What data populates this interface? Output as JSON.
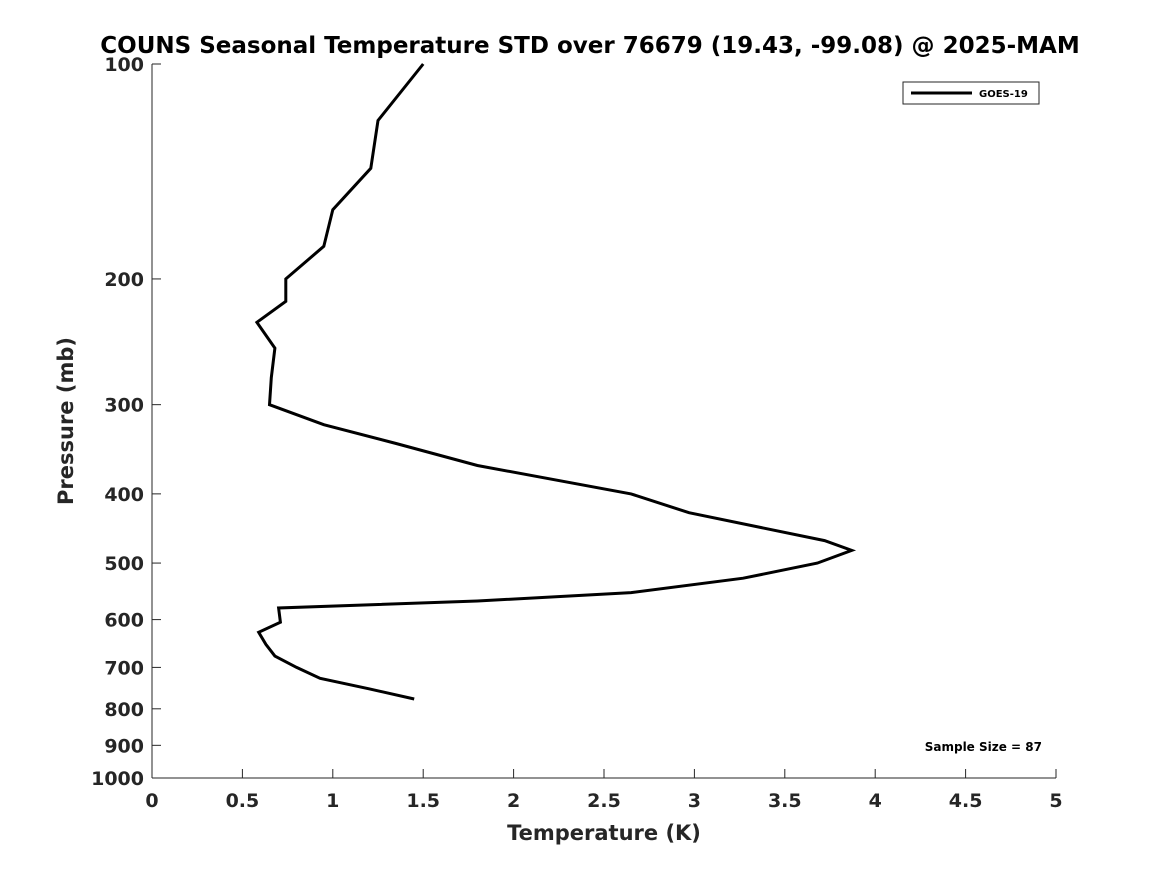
{
  "chart_data": {
    "type": "line",
    "title": "COUNS Seasonal Temperature STD over 76679 (19.43, -99.08) @ 2025-MAM",
    "xlabel": "Temperature (K)",
    "ylabel": "Pressure (mb)",
    "xlim": [
      0,
      5
    ],
    "ylim": [
      100,
      1000
    ],
    "y_scale": "log",
    "y_reversed": true,
    "grid": false,
    "legend_position": "top-right",
    "x_ticks": [
      0,
      0.5,
      1,
      1.5,
      2,
      2.5,
      3,
      3.5,
      4,
      4.5,
      5
    ],
    "x_tick_labels": [
      "0",
      "0.5",
      "1",
      "1.5",
      "2",
      "2.5",
      "3",
      "3.5",
      "4",
      "4.5",
      "5"
    ],
    "y_ticks": [
      100,
      200,
      300,
      400,
      500,
      600,
      700,
      800,
      900,
      1000
    ],
    "y_tick_labels": [
      "100",
      "200",
      "300",
      "400",
      "500",
      "600",
      "700",
      "800",
      "900",
      "1000"
    ],
    "series": [
      {
        "name": "GOES-19",
        "color": "#000000",
        "points": [
          {
            "x": 1.5,
            "y": 100
          },
          {
            "x": 1.25,
            "y": 120
          },
          {
            "x": 1.21,
            "y": 140
          },
          {
            "x": 1.0,
            "y": 160
          },
          {
            "x": 0.95,
            "y": 180
          },
          {
            "x": 0.74,
            "y": 200
          },
          {
            "x": 0.74,
            "y": 215
          },
          {
            "x": 0.58,
            "y": 230
          },
          {
            "x": 0.68,
            "y": 250
          },
          {
            "x": 0.66,
            "y": 275
          },
          {
            "x": 0.65,
            "y": 300
          },
          {
            "x": 0.95,
            "y": 320
          },
          {
            "x": 1.35,
            "y": 340
          },
          {
            "x": 1.8,
            "y": 365
          },
          {
            "x": 2.65,
            "y": 400
          },
          {
            "x": 2.97,
            "y": 425
          },
          {
            "x": 3.72,
            "y": 465
          },
          {
            "x": 3.87,
            "y": 480
          },
          {
            "x": 3.68,
            "y": 500
          },
          {
            "x": 3.27,
            "y": 525
          },
          {
            "x": 2.65,
            "y": 550
          },
          {
            "x": 1.8,
            "y": 565
          },
          {
            "x": 0.7,
            "y": 578
          },
          {
            "x": 0.71,
            "y": 605
          },
          {
            "x": 0.59,
            "y": 625
          },
          {
            "x": 0.63,
            "y": 650
          },
          {
            "x": 0.68,
            "y": 675
          },
          {
            "x": 0.8,
            "y": 700
          },
          {
            "x": 0.93,
            "y": 725
          },
          {
            "x": 1.2,
            "y": 750
          },
          {
            "x": 1.45,
            "y": 775
          }
        ]
      }
    ],
    "annotation": "Sample Size = 87"
  }
}
